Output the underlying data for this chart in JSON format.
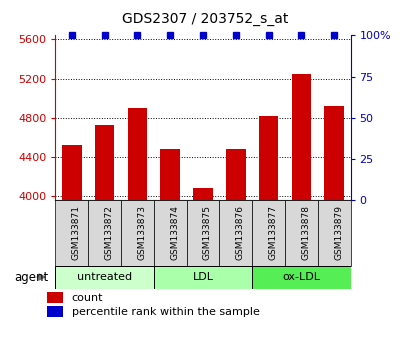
{
  "title": "GDS2307 / 203752_s_at",
  "samples": [
    "GSM133871",
    "GSM133872",
    "GSM133873",
    "GSM133874",
    "GSM133875",
    "GSM133876",
    "GSM133877",
    "GSM133878",
    "GSM133879"
  ],
  "counts": [
    4520,
    4730,
    4900,
    4480,
    4080,
    4480,
    4820,
    5250,
    4920
  ],
  "percentiles": [
    100,
    100,
    100,
    100,
    100,
    100,
    100,
    100,
    100
  ],
  "bar_color": "#cc0000",
  "dot_color": "#0000cc",
  "ylim_left": [
    3960,
    5640
  ],
  "ylim_right": [
    0,
    100
  ],
  "yticks_left": [
    4000,
    4400,
    4800,
    5200,
    5600
  ],
  "ytick_labels_left": [
    "4000",
    "4400",
    "4800",
    "5200",
    "5600"
  ],
  "yticks_right": [
    0,
    25,
    50,
    75,
    100
  ],
  "ytick_labels_right": [
    "0",
    "25",
    "50",
    "75",
    "100%"
  ],
  "groups": [
    {
      "label": "untreated",
      "indices": [
        0,
        1,
        2
      ],
      "color": "#ccffcc"
    },
    {
      "label": "LDL",
      "indices": [
        3,
        4,
        5
      ],
      "color": "#aaffaa"
    },
    {
      "label": "ox-LDL",
      "indices": [
        6,
        7,
        8
      ],
      "color": "#55ee55"
    }
  ],
  "agent_label": "agent",
  "legend_count_label": "count",
  "legend_pct_label": "percentile rank within the sample",
  "left_axis_color": "#cc0000",
  "right_axis_color": "#0000cc"
}
